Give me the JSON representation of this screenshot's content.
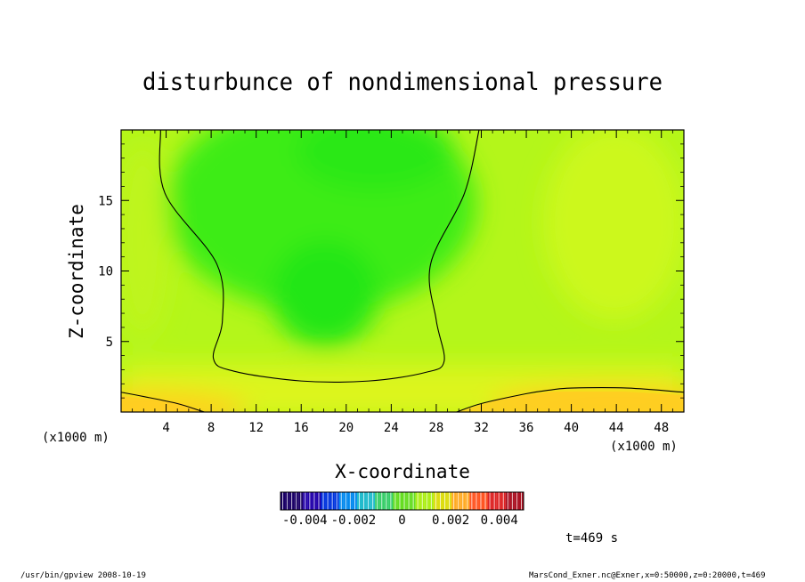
{
  "chart_data": {
    "type": "contour",
    "title": "disturbunce of nondimensional pressure",
    "xlabel": "X-coordinate",
    "ylabel": "Z-coordinate",
    "x_unit_left": "(x1000 m)",
    "x_unit_right": "(x1000 m)",
    "xlim": [
      0,
      50
    ],
    "ylim": [
      0,
      20
    ],
    "x_ticks": [
      4,
      8,
      12,
      16,
      20,
      24,
      28,
      32,
      36,
      40,
      44,
      48
    ],
    "y_ticks": [
      5,
      10,
      15
    ],
    "contour_lines": [
      {
        "name": "zero-contour-upper",
        "points": [
          [
            3.5,
            20
          ],
          [
            3.9,
            15.5
          ],
          [
            8.5,
            10.5
          ],
          [
            9,
            6.5
          ],
          [
            8.2,
            3.8
          ],
          [
            10,
            2.9
          ],
          [
            16,
            2.2
          ],
          [
            22,
            2.2
          ],
          [
            27,
            2.8
          ],
          [
            28.7,
            3.6
          ],
          [
            28,
            6.5
          ],
          [
            27.5,
            10.5
          ],
          [
            30.5,
            15.5
          ],
          [
            31.8,
            20
          ]
        ]
      },
      {
        "name": "zero-contour-lower-left",
        "points": [
          [
            0,
            1.4
          ],
          [
            2,
            1.1
          ],
          [
            5,
            0.6
          ],
          [
            7,
            0.1
          ],
          [
            7.4,
            0
          ]
        ]
      },
      {
        "name": "zero-contour-lower-right",
        "points": [
          [
            29.8,
            0
          ],
          [
            32,
            0.6
          ],
          [
            36,
            1.3
          ],
          [
            38,
            1.55
          ],
          [
            40,
            1.7
          ],
          [
            45,
            1.7
          ],
          [
            50,
            1.4
          ]
        ]
      }
    ],
    "colorbar": {
      "range": [
        -0.005,
        0.005
      ],
      "tick_labels": [
        "-0.004",
        "-0.002",
        "0",
        "0.002",
        "0.004"
      ],
      "tick_values": [
        -0.004,
        -0.002,
        0,
        0.002,
        0.004
      ],
      "colors": [
        "#1a0066",
        "#2200aa",
        "#0033dd",
        "#0088ee",
        "#22bbcc",
        "#33cc66",
        "#66dd22",
        "#aaee11",
        "#dddd11",
        "#ffaa22",
        "#ff5522",
        "#dd2222",
        "#aa1122"
      ]
    },
    "time_label": "t=469 s"
  },
  "footer": {
    "left": "/usr/bin/gpview   2008-10-19",
    "right": "MarsCond_Exner.nc@Exner,x=0:50000,z=0:20000,t=469"
  },
  "colors": {
    "field_green": "#22ee11",
    "field_yellow_green": "#ccff22",
    "field_yellow": "#ffdd22",
    "field_orange": "#ffbb22"
  }
}
